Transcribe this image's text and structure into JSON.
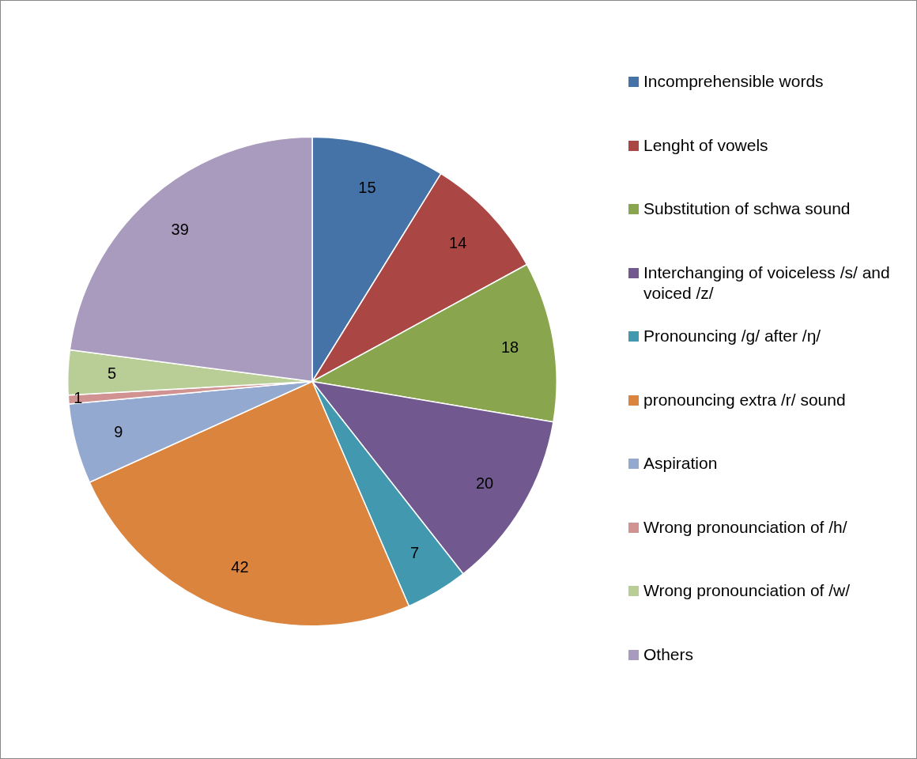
{
  "chart_data": {
    "type": "pie",
    "categories": [
      "Incomprehensible words",
      "Lenght of vowels",
      "Substitution of schwa sound",
      "Interchanging of voiceless /s/ and voiced /z/",
      "Pronouncing /g/ after /ŋ/",
      "pronouncing extra /r/ sound",
      "Aspiration",
      "Wrong pronounciation of /h/",
      "Wrong pronounciation of /w/",
      "Others"
    ],
    "values": [
      15,
      14,
      18,
      20,
      7,
      42,
      9,
      1,
      5,
      39
    ],
    "colors": [
      "#4572a7",
      "#aa4643",
      "#89a54e",
      "#71588f",
      "#4198af",
      "#db843d",
      "#93a9cf",
      "#d19392",
      "#b9cd96",
      "#a99bbd"
    ],
    "data_labels": true,
    "legend": "right"
  }
}
